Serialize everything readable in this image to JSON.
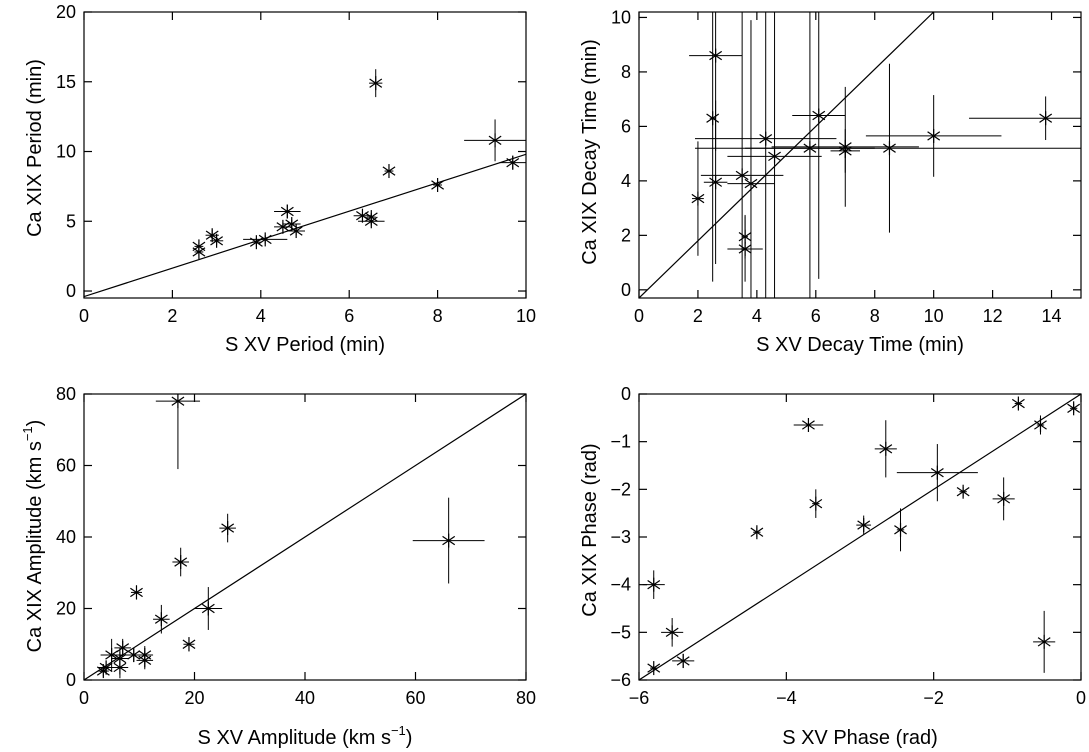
{
  "chart_data": [
    {
      "type": "scatter",
      "xlabel": "S XV Period (min)",
      "ylabel": "Ca XIX Period (min)",
      "xlim": [
        0,
        10
      ],
      "ylim": [
        -0.5,
        20
      ],
      "xticks": [
        0,
        2,
        4,
        6,
        8,
        10
      ],
      "yticks": [
        0,
        5,
        10,
        15,
        20
      ],
      "fit_line": [
        [
          0,
          -0.4
        ],
        [
          10,
          9.8
        ]
      ],
      "points": [
        {
          "x": 2.6,
          "y": 2.8,
          "xerr": 0.1,
          "yerr": 0.3
        },
        {
          "x": 2.6,
          "y": 3.2,
          "xerr": 0.1,
          "yerr": 0.3
        },
        {
          "x": 2.9,
          "y": 4.0,
          "xerr": 0.15,
          "yerr": 0.4
        },
        {
          "x": 3.0,
          "y": 3.6,
          "xerr": 0.15,
          "yerr": 0.3
        },
        {
          "x": 3.9,
          "y": 3.5,
          "xerr": 0.1,
          "yerr": 0.3
        },
        {
          "x": 4.1,
          "y": 3.7,
          "xerr": 0.5,
          "yerr": 0.3
        },
        {
          "x": 4.5,
          "y": 4.6,
          "xerr": 0.2,
          "yerr": 0.3
        },
        {
          "x": 4.6,
          "y": 5.7,
          "xerr": 0.3,
          "yerr": 0.5
        },
        {
          "x": 4.7,
          "y": 4.8,
          "xerr": 0.2,
          "yerr": 0.3
        },
        {
          "x": 4.8,
          "y": 4.3,
          "xerr": 0.2,
          "yerr": 0.3
        },
        {
          "x": 6.3,
          "y": 5.4,
          "xerr": 0.2,
          "yerr": 0.3
        },
        {
          "x": 6.5,
          "y": 5.0,
          "xerr": 0.3,
          "yerr": 0.3
        },
        {
          "x": 6.5,
          "y": 5.3,
          "xerr": 0.1,
          "yerr": 0.3
        },
        {
          "x": 6.6,
          "y": 14.9,
          "xerr": 0.15,
          "yerr": 1.0
        },
        {
          "x": 6.9,
          "y": 8.6,
          "xerr": 0.1,
          "yerr": 0.3
        },
        {
          "x": 8.0,
          "y": 7.6,
          "xerr": 0.1,
          "yerr": 0.2
        },
        {
          "x": 9.3,
          "y": 10.8,
          "xerr": 0.7,
          "yerr": 1.5
        },
        {
          "x": 9.7,
          "y": 9.2,
          "xerr": 0.3,
          "yerr": 0.5
        }
      ]
    },
    {
      "type": "scatter",
      "xlabel": "S XV Decay Time (min)",
      "ylabel": "Ca XIX Decay Time (min)",
      "xlim": [
        0,
        15
      ],
      "ylim": [
        -0.3,
        10.2
      ],
      "xticks": [
        0,
        2,
        4,
        6,
        8,
        10,
        12,
        14
      ],
      "yticks": [
        0,
        2,
        4,
        6,
        8,
        10
      ],
      "fit_line": [
        [
          0,
          -0.3
        ],
        [
          10,
          10.2
        ]
      ],
      "points": [
        {
          "x": 2.0,
          "y": 3.35,
          "xerr": 0.2,
          "yerr": 2.1
        },
        {
          "x": 2.5,
          "y": 6.3,
          "xerr": 0.1,
          "yerr": 6.0
        },
        {
          "x": 2.6,
          "y": 8.6,
          "xerr": 0.9,
          "yerr": 3.5
        },
        {
          "x": 2.6,
          "y": 3.95,
          "xerr": 0.4,
          "yerr": 3.0
        },
        {
          "x": 3.5,
          "y": 4.2,
          "xerr": 1.4,
          "yerr": 6.0
        },
        {
          "x": 3.6,
          "y": 1.95,
          "xerr": 0.1,
          "yerr": 0.8
        },
        {
          "x": 3.6,
          "y": 1.5,
          "xerr": 0.6,
          "yerr": 1.2
        },
        {
          "x": 3.8,
          "y": 3.9,
          "xerr": 0.8,
          "yerr": 6.0
        },
        {
          "x": 4.3,
          "y": 5.55,
          "xerr": 2.4,
          "yerr": 6.0
        },
        {
          "x": 4.6,
          "y": 4.9,
          "xerr": 1.6,
          "yerr": 6.0
        },
        {
          "x": 5.8,
          "y": 5.2,
          "xerr": 2.2,
          "yerr": 6.0
        },
        {
          "x": 6.1,
          "y": 6.4,
          "xerr": 0.9,
          "yerr": 6.0
        },
        {
          "x": 7.0,
          "y": 5.25,
          "xerr": 2.5,
          "yerr": 2.2
        },
        {
          "x": 7.0,
          "y": 5.1,
          "xerr": 0.5,
          "yerr": 0.8
        },
        {
          "x": 8.5,
          "y": 5.2,
          "xerr": 6.6,
          "yerr": 3.1
        },
        {
          "x": 10.0,
          "y": 5.65,
          "xerr": 2.3,
          "yerr": 1.5
        },
        {
          "x": 13.8,
          "y": 6.3,
          "xerr": 2.6,
          "yerr": 0.8
        }
      ]
    },
    {
      "type": "scatter",
      "xlabel": "S XV Amplitude (km s⁻¹)",
      "ylabel": "Ca XIX Amplitude (km s⁻¹)",
      "xlabel_main": "S XV Amplitude (km s",
      "ylabel_main": "Ca XIX Amplitude (km s",
      "label_sup": "−1",
      "label_close": ")",
      "xlim": [
        0,
        80
      ],
      "ylim": [
        0,
        80
      ],
      "xticks": [
        0,
        20,
        40,
        60,
        80
      ],
      "yticks": [
        0,
        20,
        40,
        60,
        80
      ],
      "fit_line": [
        [
          0,
          0
        ],
        [
          80,
          80
        ]
      ],
      "points": [
        {
          "x": 3.5,
          "y": 2.5,
          "xerr": 1.0,
          "yerr": 1.5
        },
        {
          "x": 4.0,
          "y": 3.5,
          "xerr": 1.5,
          "yerr": 2.0
        },
        {
          "x": 5.0,
          "y": 7.0,
          "xerr": 2.0,
          "yerr": 4.5
        },
        {
          "x": 6.5,
          "y": 3.5,
          "xerr": 1.5,
          "yerr": 3.0
        },
        {
          "x": 6.5,
          "y": 6.0,
          "xerr": 1.5,
          "yerr": 3.0
        },
        {
          "x": 7.0,
          "y": 9.0,
          "xerr": 1.5,
          "yerr": 2.5
        },
        {
          "x": 9.0,
          "y": 7.0,
          "xerr": 1.5,
          "yerr": 2.0
        },
        {
          "x": 9.5,
          "y": 24.5,
          "xerr": 1.0,
          "yerr": 2.0
        },
        {
          "x": 11.0,
          "y": 5.5,
          "xerr": 1.5,
          "yerr": 2.5
        },
        {
          "x": 11.0,
          "y": 7.0,
          "xerr": 1.5,
          "yerr": 2.5
        },
        {
          "x": 14.0,
          "y": 17.0,
          "xerr": 1.5,
          "yerr": 4.0
        },
        {
          "x": 17.0,
          "y": 78.0,
          "xerr": 4.0,
          "yerr": 19.0
        },
        {
          "x": 17.5,
          "y": 33.0,
          "xerr": 1.5,
          "yerr": 4.0
        },
        {
          "x": 19.0,
          "y": 10.0,
          "xerr": 1.0,
          "yerr": 2.0
        },
        {
          "x": 22.5,
          "y": 20.0,
          "xerr": 2.5,
          "yerr": 6.0
        },
        {
          "x": 26.0,
          "y": 42.5,
          "xerr": 1.5,
          "yerr": 4.0
        },
        {
          "x": 66.0,
          "y": 39.0,
          "xerr": 6.5,
          "yerr": 12.0
        }
      ]
    },
    {
      "type": "scatter",
      "xlabel": "S XV Phase (rad)",
      "ylabel": "Ca XIX Phase (rad)",
      "xlim": [
        -6,
        0
      ],
      "ylim": [
        -6,
        0
      ],
      "xticks": [
        -6,
        -4,
        -2,
        0
      ],
      "yticks": [
        -6,
        -5,
        -4,
        -3,
        -2,
        -1,
        0
      ],
      "tick_labels_x": [
        "−6",
        "−4",
        "−2",
        "0"
      ],
      "tick_labels_y": [
        "−6",
        "−5",
        "−4",
        "−3",
        "−2",
        "−1",
        "0"
      ],
      "fit_line": [
        [
          -6,
          -6
        ],
        [
          0,
          0
        ]
      ],
      "points": [
        {
          "x": -5.8,
          "y": -4.0,
          "xerr": 0.15,
          "yerr": 0.3
        },
        {
          "x": -5.8,
          "y": -5.75,
          "xerr": 0.05,
          "yerr": 0.05
        },
        {
          "x": -5.55,
          "y": -5.0,
          "xerr": 0.15,
          "yerr": 0.3
        },
        {
          "x": -5.4,
          "y": -5.6,
          "xerr": 0.15,
          "yerr": 0.15
        },
        {
          "x": -4.4,
          "y": -2.9,
          "xerr": 0.05,
          "yerr": 0.1
        },
        {
          "x": -3.7,
          "y": -0.65,
          "xerr": 0.2,
          "yerr": 0.05
        },
        {
          "x": -3.6,
          "y": -2.3,
          "xerr": 0.05,
          "yerr": 0.3
        },
        {
          "x": -2.95,
          "y": -2.75,
          "xerr": 0.1,
          "yerr": 0.2
        },
        {
          "x": -2.65,
          "y": -1.15,
          "xerr": 0.15,
          "yerr": 0.6
        },
        {
          "x": -2.45,
          "y": -2.85,
          "xerr": 0.05,
          "yerr": 0.45
        },
        {
          "x": -1.95,
          "y": -1.65,
          "xerr": 0.55,
          "yerr": 0.6
        },
        {
          "x": -1.6,
          "y": -2.05,
          "xerr": 0.05,
          "yerr": 0.1
        },
        {
          "x": -1.05,
          "y": -2.2,
          "xerr": 0.15,
          "yerr": 0.45
        },
        {
          "x": -0.85,
          "y": -0.2,
          "xerr": 0.05,
          "yerr": 0.1
        },
        {
          "x": -0.55,
          "y": -0.65,
          "xerr": 0.05,
          "yerr": 0.2
        },
        {
          "x": -0.5,
          "y": -5.2,
          "xerr": 0.15,
          "yerr": 0.65
        },
        {
          "x": -0.1,
          "y": -0.3,
          "xerr": 0.05,
          "yerr": 0.1
        }
      ]
    }
  ]
}
